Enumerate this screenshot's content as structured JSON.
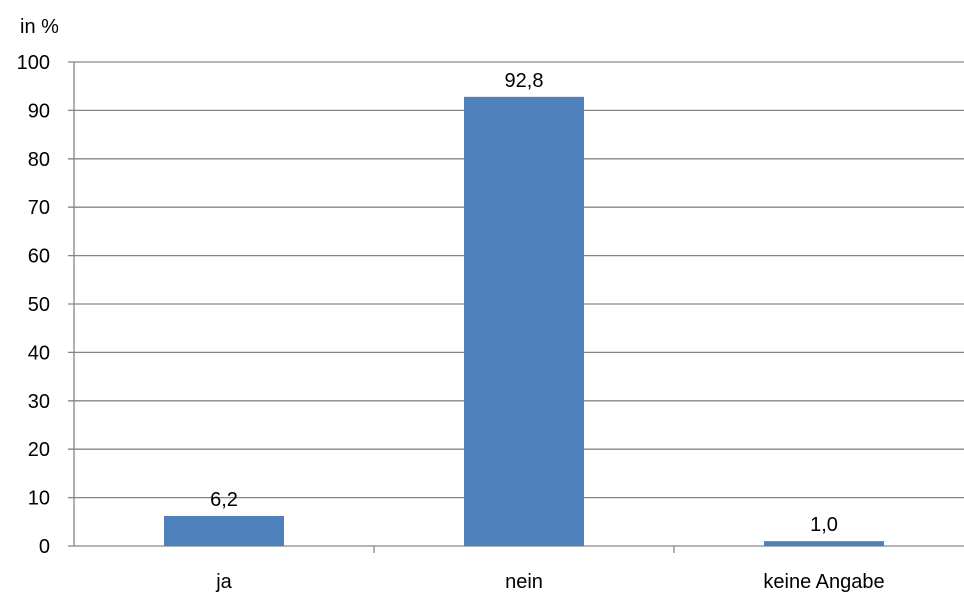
{
  "chart_data": {
    "type": "bar",
    "unit_label": "in %",
    "categories": [
      "ja",
      "nein",
      "keine Angabe"
    ],
    "values": [
      6.2,
      92.8,
      1.0
    ],
    "data_labels": [
      "6,2",
      "92,8",
      "1,0"
    ],
    "ylim": [
      0,
      100
    ],
    "yticks": [
      0,
      10,
      20,
      30,
      40,
      50,
      60,
      70,
      80,
      90,
      100
    ],
    "grid": true,
    "legend": "none",
    "bar_color": "#4F81BD",
    "grid_color": "#868686"
  }
}
